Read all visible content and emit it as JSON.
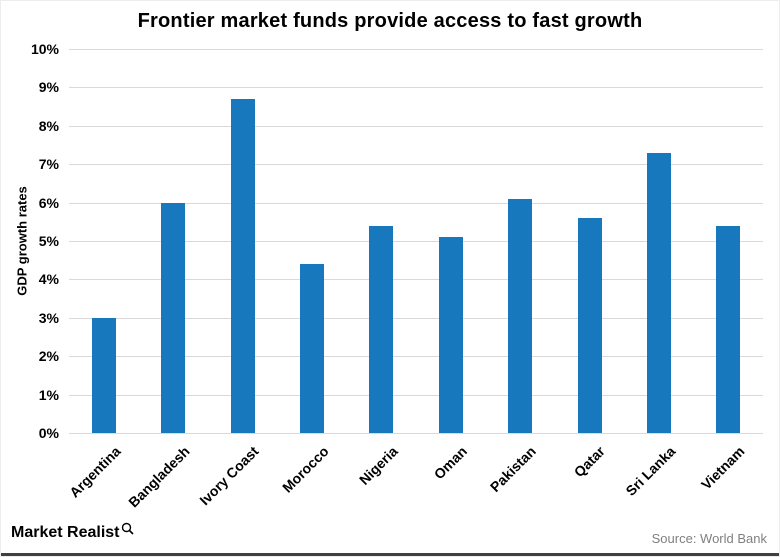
{
  "title": "Frontier market funds provide access to fast growth",
  "footer": {
    "brand": "Market Realist",
    "source": "Source: World Bank"
  },
  "colors": {
    "bar": "#1878BE",
    "grid": "#D9D9D9",
    "source_text": "#808080",
    "footer_bar": "#404040"
  },
  "chart_data": {
    "type": "bar",
    "categories": [
      "Argentina",
      "Bangladesh",
      "Ivory Coast",
      "Morocco",
      "Nigeria",
      "Oman",
      "Pakistan",
      "Qatar",
      "Sri Lanka",
      "Vietnam"
    ],
    "values": [
      3.0,
      6.0,
      8.7,
      4.4,
      5.4,
      5.1,
      6.1,
      5.6,
      7.3,
      5.4
    ],
    "title": "Frontier market funds provide access to fast growth",
    "xlabel": "",
    "ylabel": "GDP growth rates",
    "ylim": [
      0,
      10
    ],
    "ytick_step": 1,
    "ytick_suffix": "%",
    "grid": true,
    "legend": false
  }
}
